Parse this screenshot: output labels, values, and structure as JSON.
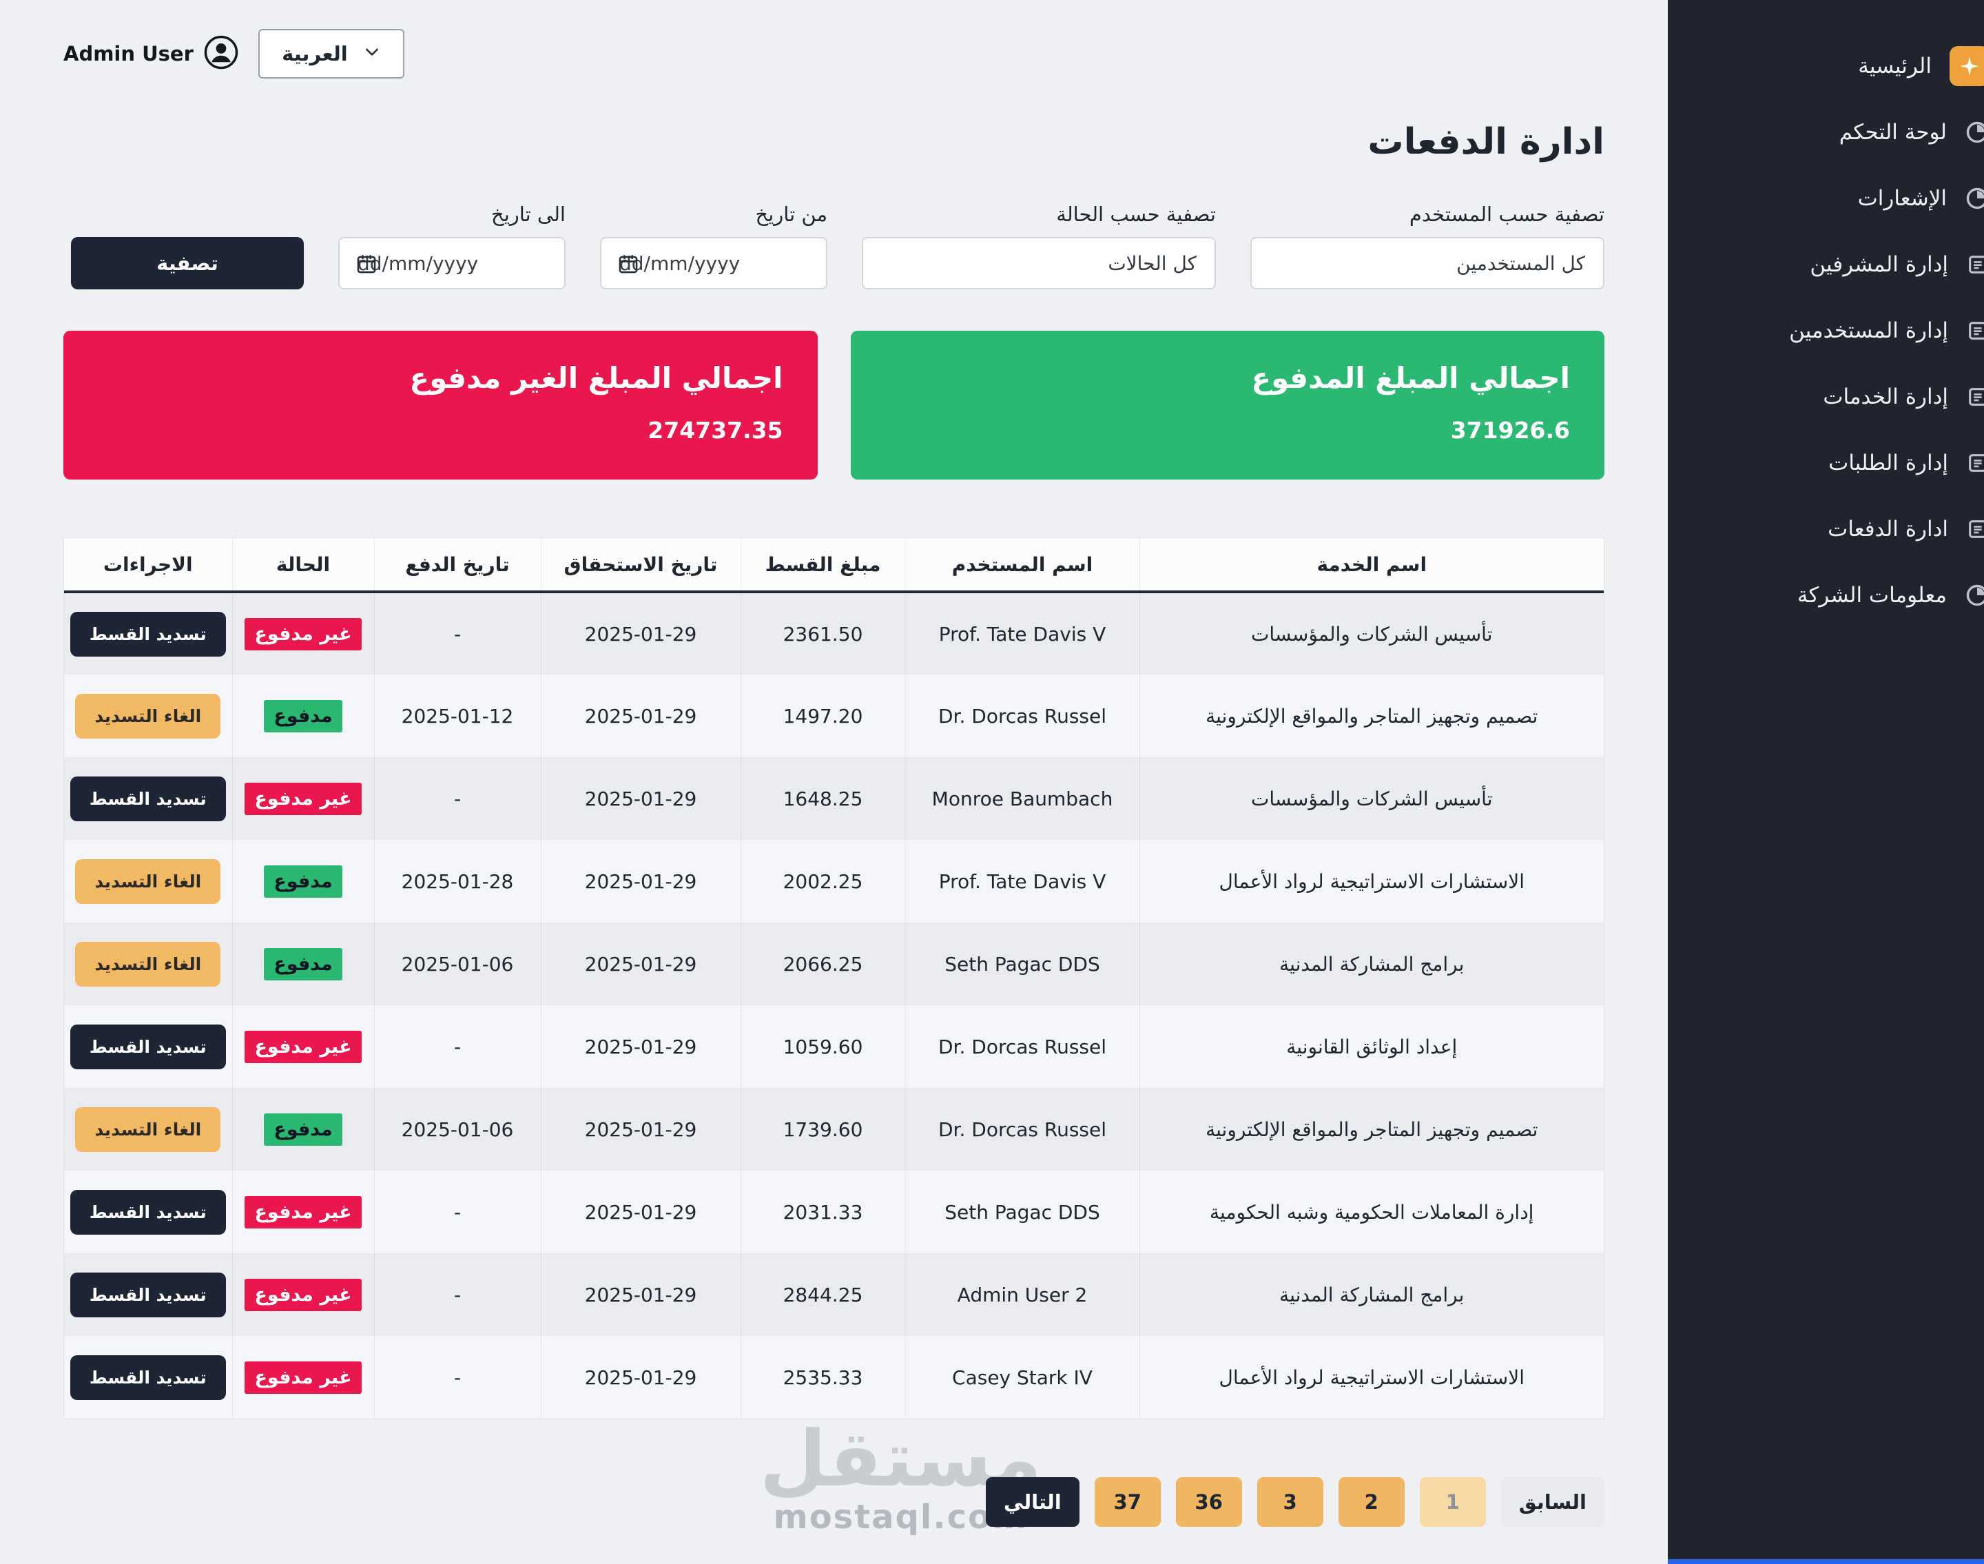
{
  "topbar": {
    "user_name": "Admin User",
    "language_value": "العربية"
  },
  "sidebar": {
    "items": [
      {
        "label": "الرئيسية",
        "icon": "sparkle"
      },
      {
        "label": "لوحة التحكم",
        "icon": "pie"
      },
      {
        "label": "الإشعارات",
        "icon": "pie"
      },
      {
        "label": "إدارة المشرفين",
        "icon": "list"
      },
      {
        "label": "إدارة المستخدمين",
        "icon": "list"
      },
      {
        "label": "إدارة الخدمات",
        "icon": "list"
      },
      {
        "label": "إدارة الطلبات",
        "icon": "list"
      },
      {
        "label": "ادارة الدفعات",
        "icon": "list"
      },
      {
        "label": "معلومات الشركة",
        "icon": "pie"
      }
    ]
  },
  "page": {
    "title": "ادارة الدفعات"
  },
  "filters": {
    "user_label": "تصفية حسب المستخدم",
    "user_value": "كل المستخدمين",
    "status_label": "تصفية حسب الحالة",
    "status_value": "كل الحالات",
    "from_label": "من تاريخ",
    "to_label": "الى تاريخ",
    "date_placeholder": "dd/mm/yyyy",
    "submit_label": "تصفية"
  },
  "summary": {
    "paid": {
      "label": "اجمالي المبلغ المدفوع",
      "value": "371926.6",
      "color": "#2ab873"
    },
    "unpaid": {
      "label": "اجمالي المبلغ الغير مدفوع",
      "value": "274737.35",
      "color": "#e9174e"
    }
  },
  "table": {
    "headers": [
      "اسم الخدمة",
      "اسم المستخدم",
      "مبلغ القسط",
      "تاريخ الاستحقاق",
      "تاريخ الدفع",
      "الحالة",
      "الاجراءات"
    ],
    "rows": [
      {
        "service": "تأسيس الشركات والمؤسسات",
        "user": "Prof. Tate Davis V",
        "amount": "2361.50",
        "due_date": "2025-01-29",
        "payment_date": "-",
        "status": "غير مدفوع",
        "paid": false,
        "action": "تسديد القسط"
      },
      {
        "service": "تصميم وتجهيز المتاجر والمواقع الإلكترونية",
        "user": "Dr. Dorcas Russel",
        "amount": "1497.20",
        "due_date": "2025-01-29",
        "payment_date": "2025-01-12",
        "status": "مدفوع",
        "paid": true,
        "action": "الغاء التسديد"
      },
      {
        "service": "تأسيس الشركات والمؤسسات",
        "user": "Monroe Baumbach",
        "amount": "1648.25",
        "due_date": "2025-01-29",
        "payment_date": "-",
        "status": "غير مدفوع",
        "paid": false,
        "action": "تسديد القسط"
      },
      {
        "service": "الاستشارات الاستراتيجية لرواد الأعمال",
        "user": "Prof. Tate Davis V",
        "amount": "2002.25",
        "due_date": "2025-01-29",
        "payment_date": "2025-01-28",
        "status": "مدفوع",
        "paid": true,
        "action": "الغاء التسديد"
      },
      {
        "service": "برامج المشاركة المدنية",
        "user": "Seth Pagac DDS",
        "amount": "2066.25",
        "due_date": "2025-01-29",
        "payment_date": "2025-01-06",
        "status": "مدفوع",
        "paid": true,
        "action": "الغاء التسديد"
      },
      {
        "service": "إعداد الوثائق القانونية",
        "user": "Dr. Dorcas Russel",
        "amount": "1059.60",
        "due_date": "2025-01-29",
        "payment_date": "-",
        "status": "غير مدفوع",
        "paid": false,
        "action": "تسديد القسط"
      },
      {
        "service": "تصميم وتجهيز المتاجر والمواقع الإلكترونية",
        "user": "Dr. Dorcas Russel",
        "amount": "1739.60",
        "due_date": "2025-01-29",
        "payment_date": "2025-01-06",
        "status": "مدفوع",
        "paid": true,
        "action": "الغاء التسديد"
      },
      {
        "service": "إدارة المعاملات الحكومية وشبه الحكومية",
        "user": "Seth Pagac DDS",
        "amount": "2031.33",
        "due_date": "2025-01-29",
        "payment_date": "-",
        "status": "غير مدفوع",
        "paid": false,
        "action": "تسديد القسط"
      },
      {
        "service": "برامج المشاركة المدنية",
        "user": "Admin User 2",
        "amount": "2844.25",
        "due_date": "2025-01-29",
        "payment_date": "-",
        "status": "غير مدفوع",
        "paid": false,
        "action": "تسديد القسط"
      },
      {
        "service": "الاستشارات الاستراتيجية لرواد الأعمال",
        "user": "Casey Stark IV",
        "amount": "2535.33",
        "due_date": "2025-01-29",
        "payment_date": "-",
        "status": "غير مدفوع",
        "paid": false,
        "action": "تسديد القسط"
      }
    ]
  },
  "pagination": {
    "prev_label": "السابق",
    "next_label": "التالي",
    "pages": [
      "1",
      "2",
      "3",
      "36",
      "37"
    ],
    "active_page": "1"
  },
  "watermark": {
    "line1": "مستقل",
    "line2": "mostaql.com"
  },
  "colors": {
    "sidebar_bg": "#20242e",
    "paid_green": "#2ab873",
    "unpaid_red": "#e9174e",
    "accent_orange": "#f0b661",
    "dark_button": "#1e2636"
  }
}
